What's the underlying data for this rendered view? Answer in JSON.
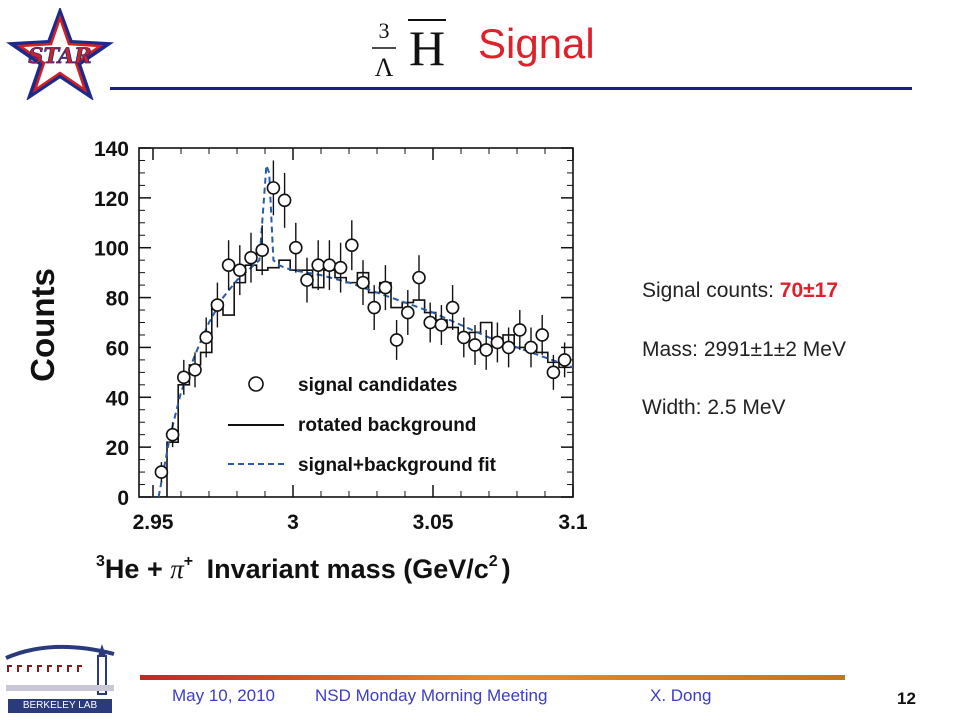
{
  "logo": {
    "star_text": "STAR",
    "berkeley_text": "BERKELEY LAB"
  },
  "title": {
    "formula_superscript": "3",
    "formula_subscript": "Λ",
    "formula_symbol": "H",
    "text": "Signal"
  },
  "info": {
    "signal_label": "Signal counts: ",
    "signal_value": "70±17",
    "mass": "Mass: 2991±1±2 MeV",
    "width": "Width: 2.5 MeV"
  },
  "footer": {
    "date": "May 10, 2010",
    "meeting": "NSD Monday Morning Meeting",
    "author": "X. Dong",
    "page": "12"
  },
  "colors": {
    "title": "#e0202a",
    "rule": "#1c1c8c",
    "footer_text": "#3c3cc8",
    "fit": "#2a5aa8"
  },
  "chart_data": {
    "type": "scatter",
    "ylabel": "Counts",
    "xlabel_parts": {
      "superscript": "3",
      "he": "He",
      "plus": "+",
      "pi": "π",
      "pi_sup": "+",
      "rest": "Invariant mass (GeV/c",
      "sq": "2",
      "close": ")"
    },
    "xlim": [
      2.945,
      3.1
    ],
    "ylim": [
      0,
      140
    ],
    "x_ticks": [
      2.95,
      3.0,
      3.05,
      3.1
    ],
    "x_tick_labels": [
      "2.95",
      "3",
      "3.05",
      "3.1"
    ],
    "y_ticks": [
      0,
      20,
      40,
      60,
      80,
      100,
      120,
      140
    ],
    "y_tick_labels": [
      "0",
      "20",
      "40",
      "60",
      "80",
      "100",
      "120",
      "140"
    ],
    "legend_position": "center-right",
    "legend": [
      "signal candidates",
      "rotated background",
      "signal+background fit"
    ],
    "series": [
      {
        "name": "signal candidates",
        "x": [
          2.953,
          2.957,
          2.961,
          2.965,
          2.969,
          2.973,
          2.977,
          2.981,
          2.985,
          2.989,
          2.993,
          2.997,
          3.001,
          3.005,
          3.009,
          3.013,
          3.017,
          3.021,
          3.025,
          3.029,
          3.033,
          3.037,
          3.041,
          3.045,
          3.049,
          3.053,
          3.057,
          3.061,
          3.065,
          3.069,
          3.073,
          3.077,
          3.081,
          3.085,
          3.089,
          3.093,
          3.097
        ],
        "y": [
          10,
          25,
          48,
          51,
          64,
          77,
          93,
          91,
          96,
          99,
          124,
          119,
          100,
          87,
          93,
          93,
          92,
          101,
          86,
          76,
          84,
          63,
          74,
          88,
          70,
          69,
          76,
          64,
          61,
          59,
          62,
          60,
          67,
          60,
          65,
          50,
          55
        ],
        "yerr": [
          4,
          5,
          7,
          7,
          8,
          9,
          10,
          10,
          10,
          10,
          11,
          11,
          10,
          9,
          10,
          10,
          10,
          10,
          9,
          9,
          9,
          8,
          9,
          9,
          8,
          8,
          9,
          8,
          8,
          8,
          8,
          8,
          8,
          8,
          8,
          7,
          7
        ]
      },
      {
        "name": "rotated background",
        "edges": [
          2.951,
          2.955,
          2.959,
          2.963,
          2.967,
          2.971,
          2.975,
          2.979,
          2.983,
          2.987,
          2.991,
          2.995,
          2.999,
          3.003,
          3.007,
          3.011,
          3.015,
          3.019,
          3.023,
          3.027,
          3.031,
          3.035,
          3.039,
          3.043,
          3.047,
          3.051,
          3.055,
          3.059,
          3.063,
          3.067,
          3.071,
          3.075,
          3.079,
          3.083,
          3.087,
          3.091,
          3.095,
          3.1
        ],
        "y": [
          0,
          22,
          45,
          53,
          58,
          78,
          73,
          86,
          93,
          91,
          92,
          95,
          91,
          91,
          84,
          91,
          88,
          86,
          90,
          82,
          86,
          76,
          78,
          79,
          74,
          71,
          68,
          64,
          66,
          70,
          62,
          65,
          60,
          61,
          58,
          54,
          52
        ]
      },
      {
        "name": "signal+background fit",
        "x": [
          2.952,
          2.956,
          2.96,
          2.965,
          2.97,
          2.975,
          2.98,
          2.985,
          2.988,
          2.989,
          2.9905,
          2.9915,
          2.993,
          2.995,
          2.997,
          3.0,
          3.01,
          3.02,
          3.03,
          3.04,
          3.05,
          3.06,
          3.07,
          3.08,
          3.09,
          3.1
        ],
        "y": [
          0,
          24,
          42,
          57,
          70,
          80,
          87,
          92,
          95,
          110,
          133,
          130,
          95,
          93,
          92,
          91,
          89,
          86,
          82,
          78,
          74,
          69,
          64,
          60,
          56,
          52
        ]
      }
    ]
  }
}
